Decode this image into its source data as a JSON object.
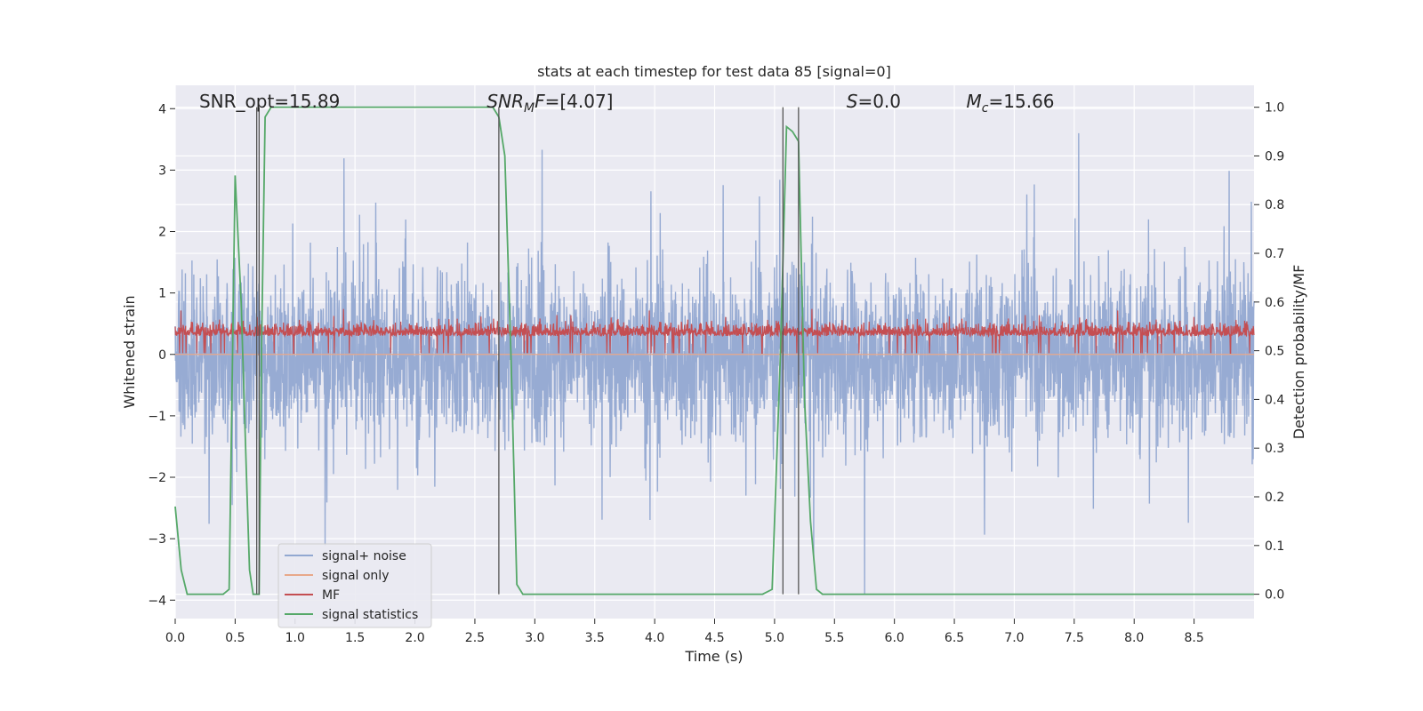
{
  "chart_data": {
    "type": "line",
    "title": "stats at each timestep for test data 85 [signal=0]",
    "xlabel": "Time (s)",
    "ylabel": "Whitened strain",
    "ylabel_right": "Detection probability/MF",
    "xlim": [
      0.0,
      9.0
    ],
    "ylim": [
      -4.3,
      4.38
    ],
    "ylim_right": [
      -0.05,
      1.045
    ],
    "x_ticks": [
      0.0,
      0.5,
      1.0,
      1.5,
      2.0,
      2.5,
      3.0,
      3.5,
      4.0,
      4.5,
      5.0,
      5.5,
      6.0,
      6.5,
      7.0,
      7.5,
      8.0,
      8.5
    ],
    "x_tick_labels": [
      "0.0",
      "0.5",
      "1.0",
      "1.5",
      "2.0",
      "2.5",
      "3.0",
      "3.5",
      "4.0",
      "4.5",
      "5.0",
      "5.5",
      "6.0",
      "6.5",
      "7.0",
      "7.5",
      "8.0",
      "8.5"
    ],
    "y_ticks": [
      4,
      3,
      2,
      1,
      0,
      -1,
      -2,
      -3,
      -4
    ],
    "y_tick_labels": [
      "4",
      "3",
      "2",
      "1",
      "0",
      "−1",
      "−2",
      "−3",
      "−4"
    ],
    "y_right_ticks": [
      1.0,
      0.9,
      0.8,
      0.7,
      0.6,
      0.5,
      0.4,
      0.3,
      0.2,
      0.1,
      0.0
    ],
    "y_right_tick_labels": [
      "1.0",
      "0.9",
      "0.8",
      "0.7",
      "0.6",
      "0.5",
      "0.4",
      "0.3",
      "0.2",
      "0.1",
      "0.0"
    ],
    "grid": true,
    "legend_position": "lower-left",
    "annotations": [
      {
        "text": "SNR_opt=15.89",
        "x": 0.2
      },
      {
        "text": "SNR_MF=[4.07]",
        "x": 2.6,
        "base": "SNR",
        "sub": "M",
        "tail": "F=[4.07]"
      },
      {
        "text": "S=0.0",
        "x": 5.6,
        "base": "S",
        "tail": "=0.0"
      },
      {
        "text": "M_c=15.66",
        "x": 6.6,
        "base": "M",
        "sub": "c",
        "tail": "=15.66"
      }
    ],
    "vertical_lines_x": [
      0.68,
      0.7,
      2.7,
      5.07,
      5.2
    ],
    "series": [
      {
        "name": "signal+ noise",
        "color": "#92a8d1",
        "axis": "left",
        "kind": "noise",
        "amplitude_envelope": 2.5,
        "peak_range": [
          -3.9,
          4.0
        ]
      },
      {
        "name": "signal only",
        "color": "#e8a88a",
        "axis": "left",
        "kind": "flat",
        "values": [
          0
        ]
      },
      {
        "name": "MF",
        "color": "#c44e52",
        "axis": "left",
        "kind": "band",
        "range": [
          0.0,
          0.95
        ]
      },
      {
        "name": "signal statistics",
        "color": "#55a868",
        "axis": "right",
        "x": [
          0.0,
          0.05,
          0.1,
          0.2,
          0.3,
          0.4,
          0.45,
          0.5,
          0.55,
          0.6,
          0.62,
          0.65,
          0.7,
          0.72,
          0.75,
          0.8,
          1.0,
          2.65,
          2.7,
          2.75,
          2.8,
          2.85,
          2.9,
          3.0,
          4.9,
          4.98,
          5.05,
          5.1,
          5.15,
          5.2,
          5.25,
          5.3,
          5.35,
          5.4,
          9.0
        ],
        "y": [
          0.18,
          0.05,
          0.0,
          0.0,
          0.0,
          0.0,
          0.01,
          0.86,
          0.6,
          0.2,
          0.05,
          0.0,
          0.0,
          0.5,
          0.98,
          1.0,
          1.0,
          1.0,
          0.98,
          0.9,
          0.5,
          0.02,
          0.0,
          0.0,
          0.0,
          0.01,
          0.5,
          0.96,
          0.95,
          0.93,
          0.4,
          0.15,
          0.01,
          0.0,
          0.0
        ]
      }
    ]
  }
}
